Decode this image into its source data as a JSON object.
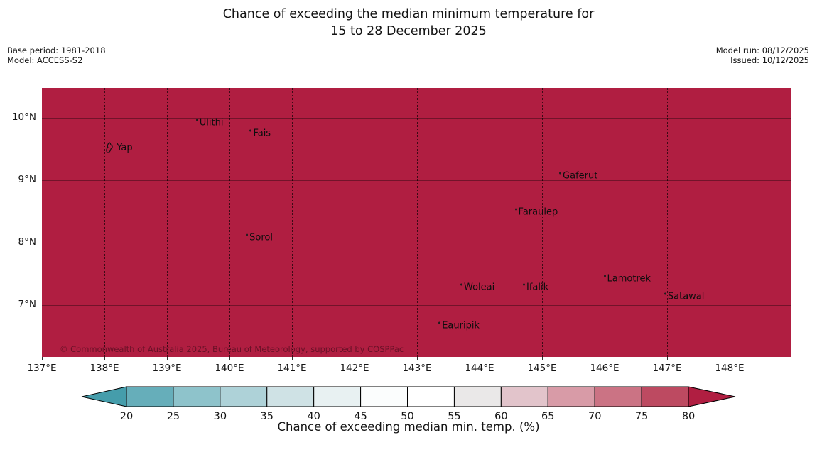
{
  "header": {
    "title_line1": "Chance of exceeding the median minimum temperature for",
    "title_line2": "15 to 28 December 2025",
    "base_period": "Base period: 1981-2018",
    "model": "Model: ACCESS-S2",
    "model_run": "Model run: 08/12/2025",
    "issued": "Issued: 10/12/2025"
  },
  "map": {
    "fill_color": "#b01e41",
    "copyright": "© Commonwealth of Australia 2025, Bureau of Meteorology, supported by COSPPac",
    "lon_ticks": [
      {
        "value": 137,
        "label": "137°E"
      },
      {
        "value": 138,
        "label": "138°E"
      },
      {
        "value": 139,
        "label": "139°E"
      },
      {
        "value": 140,
        "label": "140°E"
      },
      {
        "value": 141,
        "label": "141°E"
      },
      {
        "value": 142,
        "label": "142°E"
      },
      {
        "value": 143,
        "label": "143°E"
      },
      {
        "value": 144,
        "label": "144°E"
      },
      {
        "value": 145,
        "label": "145°E"
      },
      {
        "value": 146,
        "label": "146°E"
      },
      {
        "value": 147,
        "label": "147°E"
      },
      {
        "value": 148,
        "label": "148°E"
      }
    ],
    "lat_ticks": [
      {
        "value": 10,
        "label": "10°N"
      },
      {
        "value": 9,
        "label": "9°N"
      },
      {
        "value": 8,
        "label": "8°N"
      },
      {
        "value": 7,
        "label": "7°N"
      }
    ],
    "boundary_line": {
      "lon": 148,
      "lat_from": 9,
      "lat_to": 6.18
    },
    "places": [
      {
        "name": "Yap",
        "lon": 138.06,
        "lat": 9.52,
        "marker": "island"
      },
      {
        "name": "Ulithi",
        "lon": 139.52,
        "lat": 9.92,
        "marker": "dot"
      },
      {
        "name": "Fais",
        "lon": 140.38,
        "lat": 9.75,
        "marker": "dot"
      },
      {
        "name": "Sorol",
        "lon": 140.32,
        "lat": 8.08,
        "marker": "dot"
      },
      {
        "name": "Gaferut",
        "lon": 145.33,
        "lat": 9.07,
        "marker": "dot"
      },
      {
        "name": "Faraulep",
        "lon": 144.62,
        "lat": 8.49,
        "marker": "dot"
      },
      {
        "name": "Woleai",
        "lon": 143.75,
        "lat": 7.28,
        "marker": "dot"
      },
      {
        "name": "Ifalik",
        "lon": 144.75,
        "lat": 7.28,
        "marker": "dot"
      },
      {
        "name": "Lamotrek",
        "lon": 146.04,
        "lat": 7.42,
        "marker": "dot"
      },
      {
        "name": "Satawal",
        "lon": 147.01,
        "lat": 7.14,
        "marker": "dot"
      },
      {
        "name": "Eauripik",
        "lon": 143.4,
        "lat": 6.67,
        "marker": "dot"
      }
    ]
  },
  "colorbar": {
    "ticks": [
      "20",
      "25",
      "30",
      "35",
      "40",
      "45",
      "50",
      "55",
      "60",
      "65",
      "70",
      "75",
      "80"
    ],
    "segment_colors": [
      "#66aeba",
      "#8ec3cb",
      "#aed2d8",
      "#cfe2e5",
      "#e8f1f2",
      "#fbfdfd",
      "#ffffff",
      "#eae8e8",
      "#e2c4cb",
      "#d89ba7",
      "#cb7384",
      "#bd4a61"
    ],
    "under_color": "#459dab",
    "over_color": "#b01e41"
  },
  "caption": "Chance of exceeding median min. temp. (%)"
}
